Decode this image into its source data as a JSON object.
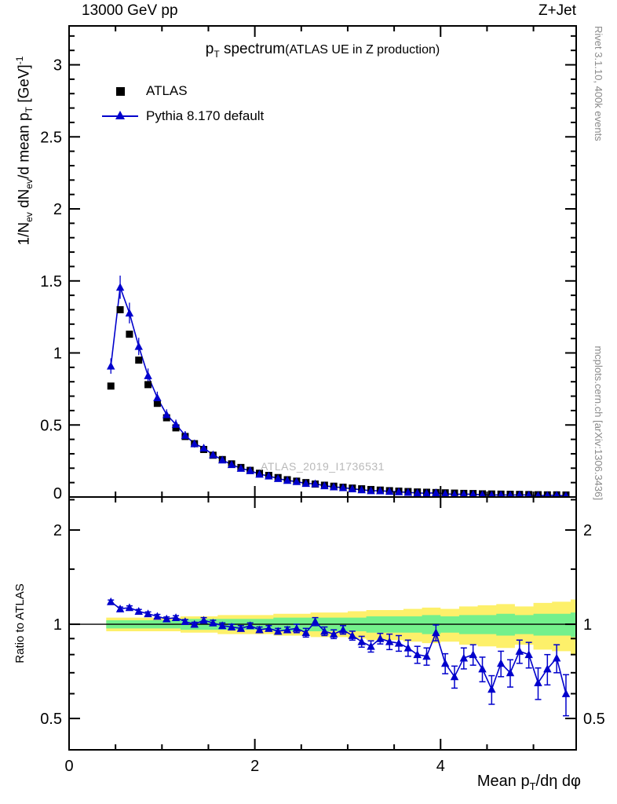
{
  "header": {
    "left": "13000 GeV pp",
    "right": "Z+Jet"
  },
  "title": {
    "p": "p",
    "p_sub": "T",
    "rest": " spectrum",
    "paren": "(ATLAS UE in Z production)"
  },
  "legend": [
    {
      "label": "ATLAS",
      "marker": "black-square"
    },
    {
      "label": "Pythia 8.170 default",
      "marker": "blue-triangle-line"
    }
  ],
  "watermark": "ATLAS_2019_I1736531",
  "side_text_top": "Rivet 3.1.10,  400k events",
  "side_text_bottom": "mcplots.cern.ch [arXiv:1306.3436]",
  "ylabel": {
    "p1": "1/N",
    "s1": "ev",
    "p2": " dN",
    "s2": "ev",
    "p3": "/d mean p",
    "s3": "T",
    "p4": " [GeV]",
    "sup": "-1"
  },
  "ratio_label": "Ratio to ATLAS",
  "xlabel": {
    "pre": "Mean p",
    "sub": "T",
    "post": "/dη dφ"
  },
  "chart_data": {
    "type": "line",
    "title": "pT spectrum (ATLAS UE in Z production)",
    "xlabel": "Mean pT/dη dφ",
    "ylabel": "1/Nev dNev/d mean pT [GeV]^-1",
    "ratio_ylabel": "Ratio to ATLAS",
    "x": [
      0.45,
      0.55,
      0.65,
      0.75,
      0.85,
      0.95,
      1.05,
      1.15,
      1.25,
      1.35,
      1.45,
      1.55,
      1.65,
      1.75,
      1.85,
      1.95,
      2.05,
      2.15,
      2.25,
      2.35,
      2.45,
      2.55,
      2.65,
      2.75,
      2.85,
      2.95,
      3.05,
      3.15,
      3.25,
      3.35,
      3.45,
      3.55,
      3.65,
      3.75,
      3.85,
      3.95,
      4.05,
      4.15,
      4.25,
      4.35,
      4.45,
      4.55,
      4.65,
      4.75,
      4.85,
      4.95,
      5.05,
      5.15,
      5.25,
      5.35
    ],
    "series": [
      {
        "name": "ATLAS",
        "marker": "square",
        "color": "#000000",
        "values": [
          0.77,
          1.3,
          1.13,
          0.95,
          0.78,
          0.65,
          0.55,
          0.48,
          0.42,
          0.37,
          0.33,
          0.29,
          0.26,
          0.23,
          0.205,
          0.185,
          0.165,
          0.15,
          0.135,
          0.12,
          0.11,
          0.1,
          0.09,
          0.082,
          0.075,
          0.068,
          0.062,
          0.057,
          0.052,
          0.048,
          0.044,
          0.041,
          0.038,
          0.035,
          0.033,
          0.031,
          0.029,
          0.027,
          0.025,
          0.024,
          0.022,
          0.021,
          0.02,
          0.019,
          0.018,
          0.017,
          0.016,
          0.015,
          0.015,
          0.014
        ]
      },
      {
        "name": "Pythia 8.170 default",
        "marker": "triangle",
        "color": "#0000cc",
        "values": [
          0.909,
          1.456,
          1.277,
          1.045,
          0.842,
          0.689,
          0.572,
          0.504,
          0.428,
          0.37,
          0.34,
          0.293,
          0.257,
          0.225,
          0.199,
          0.183,
          0.158,
          0.146,
          0.128,
          0.115,
          0.107,
          0.094,
          0.092,
          0.078,
          0.07,
          0.065,
          0.057,
          0.05,
          0.044,
          0.043,
          0.039,
          0.036,
          0.032,
          0.028,
          0.026,
          0.029,
          0.022,
          0.018,
          0.02,
          0.019,
          0.016,
          0.013,
          0.015,
          0.013,
          0.015,
          0.014,
          0.01,
          0.011,
          0.012,
          0.008
        ]
      }
    ],
    "ratio": {
      "values": [
        1.18,
        1.12,
        1.13,
        1.1,
        1.08,
        1.06,
        1.04,
        1.05,
        1.02,
        1.0,
        1.03,
        1.01,
        0.99,
        0.98,
        0.97,
        0.99,
        0.96,
        0.97,
        0.95,
        0.96,
        0.97,
        0.94,
        1.02,
        0.95,
        0.93,
        0.96,
        0.92,
        0.88,
        0.85,
        0.9,
        0.88,
        0.87,
        0.84,
        0.8,
        0.79,
        0.94,
        0.75,
        0.68,
        0.78,
        0.8,
        0.72,
        0.62,
        0.75,
        0.7,
        0.82,
        0.8,
        0.65,
        0.72,
        0.78,
        0.6
      ],
      "errors": [
        0.015,
        0.015,
        0.015,
        0.015,
        0.015,
        0.015,
        0.015,
        0.015,
        0.015,
        0.015,
        0.02,
        0.02,
        0.02,
        0.02,
        0.02,
        0.02,
        0.02,
        0.02,
        0.02,
        0.02,
        0.03,
        0.03,
        0.03,
        0.03,
        0.03,
        0.03,
        0.03,
        0.035,
        0.035,
        0.035,
        0.05,
        0.05,
        0.05,
        0.05,
        0.05,
        0.055,
        0.055,
        0.055,
        0.06,
        0.06,
        0.065,
        0.065,
        0.07,
        0.07,
        0.07,
        0.075,
        0.075,
        0.08,
        0.08,
        0.09
      ]
    },
    "bands": {
      "x_edges": [
        0.4,
        0.6,
        0.8,
        1.0,
        1.2,
        1.4,
        1.6,
        1.8,
        2.0,
        2.2,
        2.4,
        2.6,
        2.8,
        3.0,
        3.2,
        3.4,
        3.6,
        3.8,
        4.0,
        4.2,
        4.4,
        4.6,
        4.8,
        5.0,
        5.2,
        5.4,
        5.6
      ],
      "yellow_hi": [
        1.05,
        1.05,
        1.05,
        1.05,
        1.06,
        1.06,
        1.07,
        1.07,
        1.07,
        1.08,
        1.08,
        1.09,
        1.09,
        1.1,
        1.11,
        1.11,
        1.12,
        1.13,
        1.12,
        1.14,
        1.15,
        1.16,
        1.14,
        1.17,
        1.18,
        1.2
      ],
      "yellow_lo": [
        0.95,
        0.95,
        0.95,
        0.95,
        0.94,
        0.94,
        0.93,
        0.93,
        0.93,
        0.92,
        0.92,
        0.91,
        0.91,
        0.9,
        0.89,
        0.89,
        0.88,
        0.87,
        0.88,
        0.86,
        0.85,
        0.84,
        0.86,
        0.83,
        0.82,
        0.8
      ],
      "green_hi": [
        1.03,
        1.03,
        1.03,
        1.03,
        1.04,
        1.04,
        1.04,
        1.04,
        1.04,
        1.05,
        1.05,
        1.05,
        1.05,
        1.05,
        1.06,
        1.06,
        1.06,
        1.07,
        1.06,
        1.07,
        1.07,
        1.08,
        1.07,
        1.08,
        1.08,
        1.09
      ],
      "green_lo": [
        0.97,
        0.97,
        0.97,
        0.97,
        0.96,
        0.96,
        0.96,
        0.96,
        0.96,
        0.95,
        0.95,
        0.95,
        0.95,
        0.95,
        0.94,
        0.94,
        0.94,
        0.93,
        0.94,
        0.93,
        0.93,
        0.92,
        0.93,
        0.92,
        0.92,
        0.91
      ]
    },
    "axes": {
      "xlim": [
        0,
        5.46
      ],
      "x_major": [
        0,
        2,
        4
      ],
      "x_minor_step": 0.5,
      "main_ylim": [
        0,
        3.27
      ],
      "main_y_major": [
        0,
        0.5,
        1,
        1.5,
        2,
        2.5,
        3
      ],
      "main_y_minor_step": 0.1,
      "ratio_ylim": [
        0.397,
        2.55
      ],
      "ratio_scale": "log",
      "ratio_y_major": [
        0.5,
        1,
        2
      ],
      "ratio_y_minor": [
        0.6,
        0.7,
        0.8,
        0.9,
        1.5,
        2.5
      ]
    },
    "colors": {
      "pythia": "#0000cc",
      "atlas": "#000000",
      "band_yellow": "#fdf06a",
      "band_green": "#74f08c",
      "watermark": "#b9b9b9"
    }
  }
}
